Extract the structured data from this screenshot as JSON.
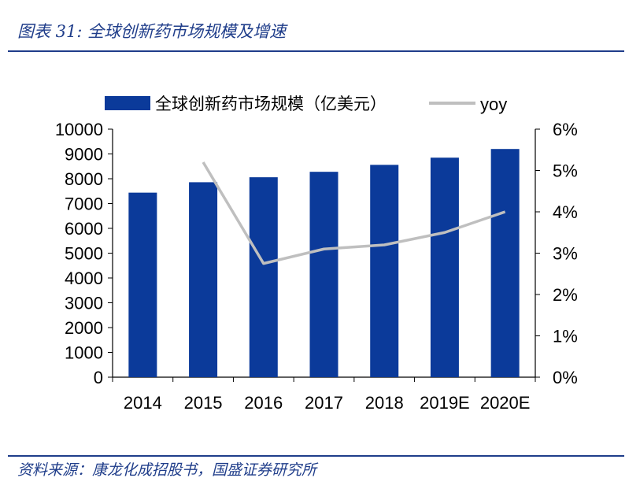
{
  "header": {
    "title": "图表 31: 全球创新药市场规模及增速"
  },
  "footer": {
    "source": "资料来源：康龙化成招股书，国盛证券研究所"
  },
  "colors": {
    "bar": "#0b3a9a",
    "line": "#bfbfbf",
    "accent": "#1f3d8a"
  },
  "chart_data": {
    "type": "bar",
    "categories": [
      "2014",
      "2015",
      "2016",
      "2017",
      "2018",
      "2019E",
      "2020E"
    ],
    "series": [
      {
        "name": "全球创新药市场规模（亿美元）",
        "type": "bar",
        "axis": "left",
        "values": [
          7440,
          7860,
          8060,
          8280,
          8560,
          8850,
          9200
        ]
      },
      {
        "name": "yoy",
        "type": "line",
        "axis": "right",
        "values": [
          null,
          0.052,
          0.0275,
          0.031,
          0.032,
          0.035,
          0.04
        ]
      }
    ],
    "y_left": {
      "min": 0,
      "max": 10000,
      "step": 1000,
      "tick_labels": [
        "0",
        "1000",
        "2000",
        "3000",
        "4000",
        "5000",
        "6000",
        "7000",
        "8000",
        "9000",
        "10000"
      ]
    },
    "y_right": {
      "min": 0,
      "max": 0.06,
      "step": 0.01,
      "tick_labels": [
        "0%",
        "1%",
        "2%",
        "3%",
        "4%",
        "5%",
        "6%"
      ]
    },
    "legend": "top",
    "grid": false
  }
}
